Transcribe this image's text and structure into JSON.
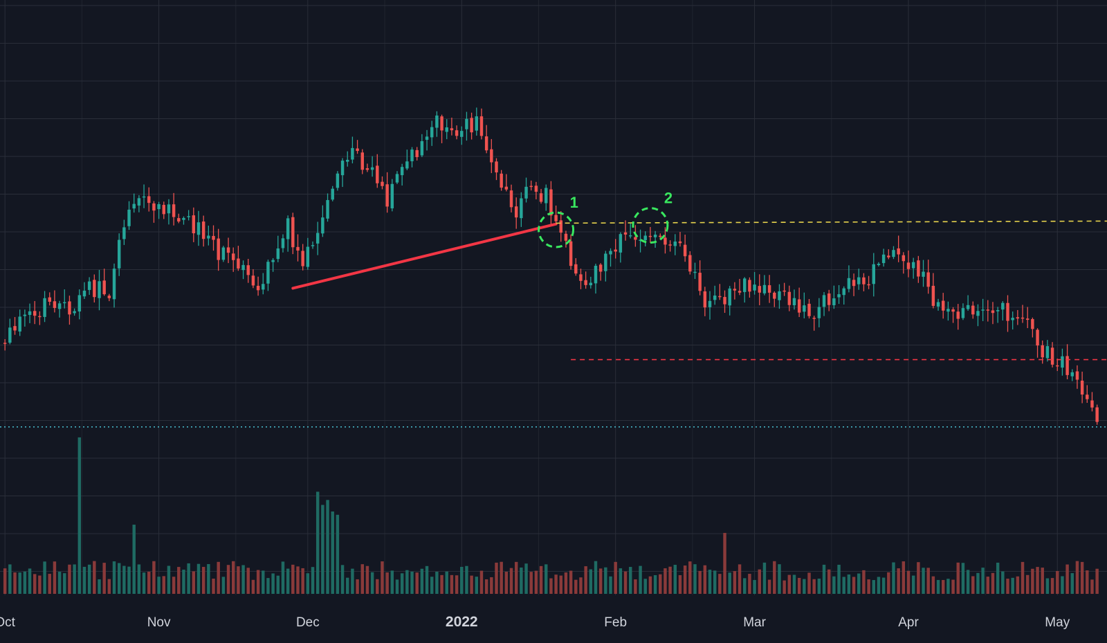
{
  "colors": {
    "background": "#131722",
    "grid": "#2a2e39",
    "up": "#26a69a",
    "down": "#ef5350",
    "up_volume": "#1f6b63",
    "down_volume": "#8a3a3a",
    "trendline": "#f23645",
    "resistance": "#e8d44d",
    "support": "#f23645",
    "annotation": "#39e75f",
    "last_price": "#4dd0e1",
    "axis_text": "#d1d4dc"
  },
  "chart_data": {
    "type": "candlestick",
    "x_ticks": [
      {
        "label": "Oct",
        "day": 0,
        "bold": false
      },
      {
        "label": "Nov",
        "day": 31,
        "bold": false
      },
      {
        "label": "Dec",
        "day": 61,
        "bold": false
      },
      {
        "label": "2022",
        "day": 92,
        "bold": true
      },
      {
        "label": "Feb",
        "day": 123,
        "bold": false
      },
      {
        "label": "Mar",
        "day": 151,
        "bold": false
      },
      {
        "label": "Apr",
        "day": 182,
        "bold": false
      },
      {
        "label": "May",
        "day": 212,
        "bold": false
      }
    ],
    "x_range": [
      -1,
      222
    ],
    "y_range": [
      0,
      100
    ],
    "volume_range": [
      0,
      100
    ],
    "grid": true,
    "key_points": [
      [
        0,
        32
      ],
      [
        5,
        39
      ],
      [
        12,
        41
      ],
      [
        14,
        38
      ],
      [
        16,
        44
      ],
      [
        22,
        44
      ],
      [
        26,
        63
      ],
      [
        30,
        63
      ],
      [
        38,
        60
      ],
      [
        44,
        52
      ],
      [
        48,
        50
      ],
      [
        52,
        45
      ],
      [
        58,
        58
      ],
      [
        61,
        49
      ],
      [
        66,
        64
      ],
      [
        70,
        75
      ],
      [
        74,
        72
      ],
      [
        78,
        64
      ],
      [
        82,
        72
      ],
      [
        88,
        82
      ],
      [
        92,
        80
      ],
      [
        96,
        82
      ],
      [
        100,
        70
      ],
      [
        104,
        62
      ],
      [
        106,
        68
      ],
      [
        110,
        65
      ],
      [
        112,
        60
      ],
      [
        116,
        46
      ],
      [
        120,
        48
      ],
      [
        126,
        56
      ],
      [
        128,
        57
      ],
      [
        132,
        55
      ],
      [
        138,
        52
      ],
      [
        142,
        40
      ],
      [
        146,
        42
      ],
      [
        152,
        46
      ],
      [
        158,
        42
      ],
      [
        164,
        39
      ],
      [
        168,
        43
      ],
      [
        174,
        46
      ],
      [
        180,
        52
      ],
      [
        184,
        50
      ],
      [
        188,
        42
      ],
      [
        194,
        39
      ],
      [
        200,
        40
      ],
      [
        206,
        37
      ],
      [
        210,
        30
      ],
      [
        214,
        28
      ],
      [
        218,
        22
      ],
      [
        220,
        16
      ]
    ],
    "volume_spikes": [
      {
        "day": 15,
        "value": 95
      },
      {
        "day": 63,
        "value": 62
      },
      {
        "day": 64,
        "value": 54
      },
      {
        "day": 65,
        "value": 57
      },
      {
        "day": 66,
        "value": 50
      },
      {
        "day": 67,
        "value": 48
      },
      {
        "day": 26,
        "value": 42
      },
      {
        "day": 145,
        "value": 37
      }
    ],
    "trendline": {
      "from": {
        "day": 58,
        "value": 44.3
      },
      "to": {
        "day": 111,
        "value": 58.8
      }
    },
    "resistance_line": {
      "from_day": 111,
      "value": 59.0
    },
    "support_line": {
      "from_day": 114,
      "value": 28.2
    },
    "last_price_line": {
      "value": 13
    },
    "annotations": [
      {
        "label": "1",
        "day": 111,
        "value": 57.5
      },
      {
        "label": "2",
        "day": 130,
        "value": 58.5
      }
    ]
  }
}
